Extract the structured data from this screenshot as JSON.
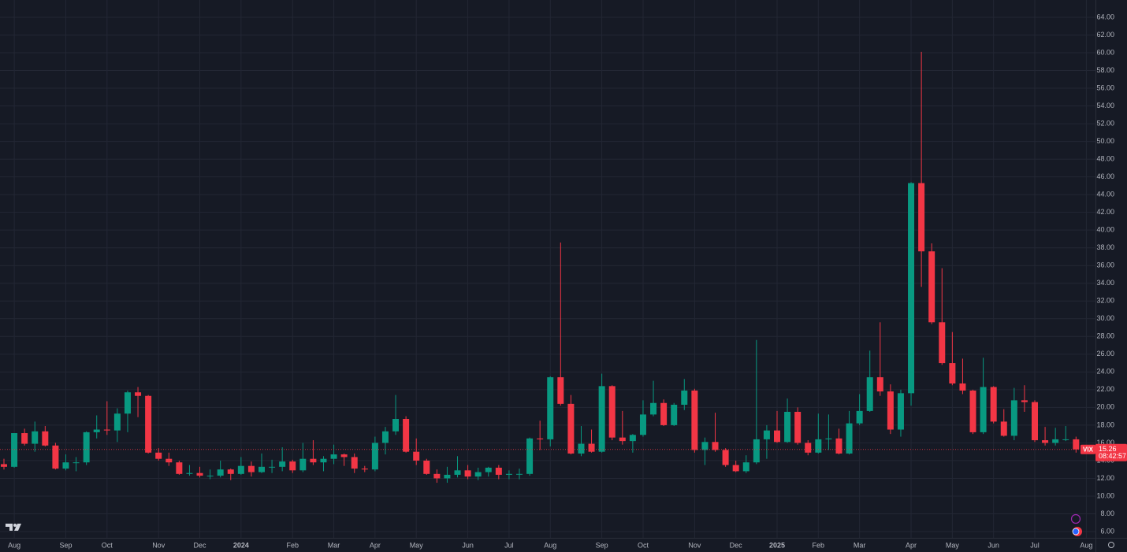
{
  "chart_data": {
    "type": "candlestick",
    "symbol": "VIX",
    "categories": [
      null,
      "Aug",
      null,
      null,
      null,
      null,
      "Sep",
      null,
      null,
      null,
      "Oct",
      null,
      null,
      null,
      null,
      "Nov",
      null,
      null,
      null,
      "Dec",
      null,
      null,
      null,
      "2024",
      null,
      null,
      null,
      null,
      "Feb",
      null,
      null,
      null,
      "Mar",
      null,
      null,
      null,
      "Apr",
      null,
      null,
      null,
      "May",
      null,
      null,
      null,
      null,
      "Jun",
      null,
      null,
      null,
      "Jul",
      null,
      null,
      null,
      "Aug",
      null,
      null,
      null,
      null,
      "Sep",
      null,
      null,
      null,
      "Oct",
      null,
      null,
      null,
      null,
      "Nov",
      null,
      null,
      null,
      "Dec",
      null,
      null,
      null,
      "2025",
      null,
      null,
      null,
      "Feb",
      null,
      null,
      null,
      "Mar",
      null,
      null,
      null,
      null,
      "Apr",
      null,
      null,
      null,
      "May",
      null,
      null,
      null,
      "Jun",
      null,
      null,
      null,
      "Jul",
      null,
      null,
      null,
      null,
      "Aug"
    ],
    "open": [
      13.6,
      13.3,
      17.1,
      15.9,
      17.3,
      15.7,
      13.1,
      13.8,
      13.8,
      17.2,
      17.5,
      17.4,
      19.3,
      21.7,
      21.3,
      14.9,
      14.2,
      13.8,
      12.5,
      12.6,
      12.3,
      12.3,
      13.0,
      12.5,
      13.4,
      12.7,
      13.3,
      13.3,
      13.9,
      12.9,
      14.2,
      13.8,
      14.2,
      14.7,
      14.4,
      13.1,
      13.0,
      16.0,
      17.3,
      18.7,
      15.0,
      14.0,
      12.5,
      12.0,
      12.4,
      12.9,
      12.2,
      12.7,
      13.2,
      12.4,
      12.5,
      12.5,
      16.5,
      16.4,
      23.4,
      20.4,
      14.8,
      15.9,
      15.0,
      22.4,
      16.6,
      16.2,
      16.9,
      19.2,
      20.5,
      18.0,
      20.3,
      21.9,
      15.2,
      16.1,
      15.2,
      13.5,
      12.8,
      13.8,
      16.4,
      17.4,
      16.1,
      19.5,
      16.0,
      14.9,
      16.4,
      16.5,
      14.8,
      18.2,
      19.6,
      23.4,
      21.8,
      17.5,
      21.6,
      45.3,
      37.6,
      29.6,
      25.0,
      22.7,
      21.9,
      17.2,
      22.3,
      18.4,
      16.8,
      20.8,
      20.6,
      16.3,
      16.0,
      16.4,
      16.4,
      null
    ],
    "high": [
      14.2,
      17.1,
      17.6,
      18.4,
      17.9,
      16.0,
      14.7,
      14.4,
      17.3,
      19.1,
      20.7,
      19.9,
      21.9,
      22.3,
      21.4,
      15.4,
      14.9,
      14.0,
      13.5,
      13.3,
      13.0,
      14.0,
      13.1,
      14.4,
      13.9,
      14.8,
      14.1,
      15.5,
      14.1,
      16.0,
      16.3,
      14.5,
      15.8,
      14.8,
      14.8,
      13.4,
      16.7,
      17.8,
      21.4,
      19.0,
      16.5,
      14.2,
      13.0,
      13.3,
      14.5,
      13.5,
      13.2,
      13.3,
      13.5,
      12.9,
      13.1,
      16.6,
      18.5,
      23.5,
      38.6,
      21.4,
      17.9,
      17.5,
      23.8,
      22.5,
      19.6,
      17.0,
      20.8,
      23.0,
      20.9,
      20.5,
      23.2,
      22.1,
      16.6,
      19.4,
      15.4,
      14.0,
      14.6,
      27.6,
      18.0,
      19.6,
      21.0,
      20.0,
      16.3,
      19.3,
      19.2,
      17.6,
      19.6,
      21.5,
      26.4,
      29.6,
      22.6,
      22.0,
      45.4,
      60.1,
      38.5,
      35.7,
      28.5,
      25.5,
      22.0,
      25.6,
      22.4,
      19.8,
      22.2,
      22.5,
      20.8,
      17.8,
      17.7,
      17.9,
      16.7,
      null
    ],
    "low": [
      13.0,
      13.2,
      15.7,
      15.0,
      15.6,
      13.0,
      12.9,
      12.8,
      13.5,
      16.5,
      16.9,
      16.1,
      17.2,
      18.9,
      14.8,
      14.0,
      13.4,
      12.4,
      12.3,
      12.1,
      11.9,
      12.1,
      11.8,
      12.4,
      12.2,
      12.6,
      12.6,
      12.8,
      12.6,
      12.7,
      13.5,
      12.8,
      13.6,
      13.4,
      12.6,
      12.7,
      12.8,
      14.7,
      16.9,
      14.9,
      13.5,
      12.4,
      11.5,
      11.5,
      12.1,
      11.9,
      11.8,
      12.2,
      11.9,
      11.9,
      11.9,
      12.3,
      15.2,
      15.6,
      20.2,
      14.7,
      14.5,
      14.9,
      14.9,
      16.3,
      15.8,
      14.9,
      16.7,
      19.0,
      17.9,
      17.9,
      19.7,
      14.9,
      13.5,
      15.0,
      13.3,
      12.7,
      12.6,
      13.6,
      14.2,
      16.0,
      16.0,
      15.8,
      14.6,
      14.8,
      15.2,
      14.7,
      14.7,
      18.0,
      19.5,
      21.3,
      17.0,
      16.7,
      20.2,
      33.6,
      29.4,
      24.8,
      22.5,
      21.5,
      17.0,
      17.0,
      18.2,
      16.7,
      16.3,
      19.5,
      16.1,
      15.7,
      15.7,
      16.2,
      14.9,
      null
    ],
    "close": [
      13.3,
      17.1,
      15.9,
      17.3,
      15.7,
      13.1,
      13.8,
      13.8,
      17.2,
      17.5,
      17.4,
      19.3,
      21.7,
      21.3,
      14.9,
      14.2,
      13.8,
      12.5,
      12.6,
      12.3,
      12.3,
      13.0,
      12.5,
      13.4,
      12.7,
      13.3,
      13.3,
      13.9,
      12.9,
      14.2,
      13.8,
      14.2,
      14.7,
      14.4,
      13.1,
      13.0,
      16.0,
      17.3,
      18.7,
      15.0,
      14.0,
      12.5,
      12.0,
      12.4,
      12.9,
      12.2,
      12.7,
      13.2,
      12.4,
      12.5,
      12.5,
      16.5,
      16.4,
      23.4,
      20.4,
      14.8,
      15.9,
      15.0,
      22.4,
      16.6,
      16.2,
      16.9,
      19.2,
      20.5,
      18.0,
      20.3,
      21.9,
      15.2,
      16.1,
      15.2,
      13.5,
      12.8,
      13.8,
      16.4,
      17.4,
      16.1,
      19.5,
      16.0,
      14.9,
      16.4,
      16.5,
      14.8,
      18.2,
      19.6,
      23.4,
      21.8,
      17.5,
      21.6,
      45.3,
      37.6,
      29.6,
      25.0,
      22.7,
      21.9,
      17.2,
      22.3,
      18.4,
      16.8,
      20.8,
      20.6,
      16.3,
      16.0,
      16.4,
      16.4,
      15.26,
      null
    ],
    "up_color": "#089981",
    "down_color": "#f23645",
    "last_price": 15.26,
    "countdown": "08:42:57",
    "ylim": [
      5.29,
      65.95
    ],
    "yticks": [
      {
        "value": 6,
        "label": "6.00"
      },
      {
        "value": 8,
        "label": "8.00"
      },
      {
        "value": 10,
        "label": "10.00"
      },
      {
        "value": 12,
        "label": "12.00"
      },
      {
        "value": 14,
        "label": "14.00"
      },
      {
        "value": 16,
        "label": "16.00"
      },
      {
        "value": 18,
        "label": "18.00"
      },
      {
        "value": 20,
        "label": "20.00"
      },
      {
        "value": 22,
        "label": "22.00"
      },
      {
        "value": 24,
        "label": "24.00"
      },
      {
        "value": 26,
        "label": "26.00"
      },
      {
        "value": 28,
        "label": "28.00"
      },
      {
        "value": 30,
        "label": "30.00"
      },
      {
        "value": 32,
        "label": "32.00"
      },
      {
        "value": 34,
        "label": "34.00"
      },
      {
        "value": 36,
        "label": "36.00"
      },
      {
        "value": 38,
        "label": "38.00"
      },
      {
        "value": 40,
        "label": "40.00"
      },
      {
        "value": 42,
        "label": "42.00"
      },
      {
        "value": 44,
        "label": "44.00"
      },
      {
        "value": 46,
        "label": "46.00"
      },
      {
        "value": 48,
        "label": "48.00"
      },
      {
        "value": 50,
        "label": "50.00"
      },
      {
        "value": 52,
        "label": "52.00"
      },
      {
        "value": 54,
        "label": "54.00"
      },
      {
        "value": 56,
        "label": "56.00"
      },
      {
        "value": 58,
        "label": "58.00"
      },
      {
        "value": 60,
        "label": "60.00"
      },
      {
        "value": 62,
        "label": "62.00"
      },
      {
        "value": 64,
        "label": "64.00"
      }
    ],
    "grid": true
  }
}
